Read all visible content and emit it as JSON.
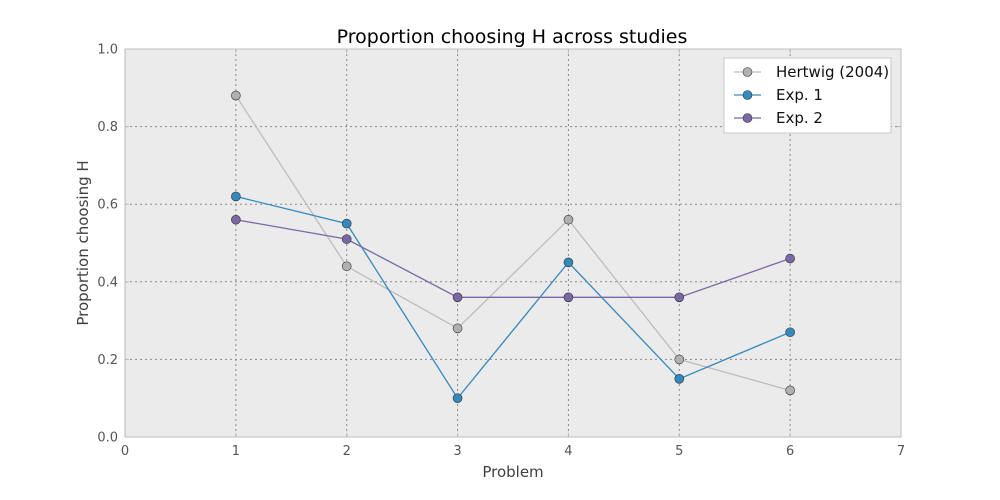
{
  "chart_data": {
    "type": "line",
    "title": "Proportion choosing H across studies",
    "xlabel": "Problem",
    "ylabel": "Proportion choosing H",
    "xlim": [
      0,
      7
    ],
    "ylim": [
      0,
      1.0
    ],
    "x_ticks": [
      "0",
      "1",
      "2",
      "3",
      "4",
      "5",
      "6",
      "7"
    ],
    "y_ticks": [
      "0.0",
      "0.2",
      "0.4",
      "0.6",
      "0.8",
      "1.0"
    ],
    "grid": true,
    "legend_position": "top-right",
    "x": [
      1,
      2,
      3,
      4,
      5,
      6
    ],
    "series": [
      {
        "name": "Hertwig (2004)",
        "color": "#bdbdbd",
        "marker_color": "#b0b0b0",
        "values": [
          0.88,
          0.44,
          0.28,
          0.56,
          0.2,
          0.12
        ]
      },
      {
        "name": "Exp. 1",
        "color": "#348abd",
        "marker_color": "#348abd",
        "values": [
          0.62,
          0.55,
          0.1,
          0.45,
          0.15,
          0.27
        ]
      },
      {
        "name": "Exp. 2",
        "color": "#7a68a6",
        "marker_color": "#7a68a6",
        "values": [
          0.56,
          0.51,
          0.36,
          0.36,
          0.36,
          0.46
        ]
      }
    ]
  }
}
